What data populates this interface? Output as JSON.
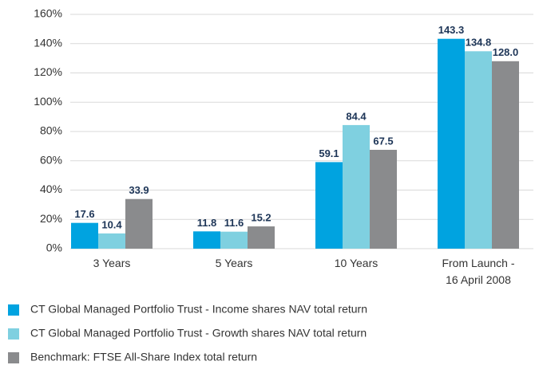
{
  "chart_data": {
    "type": "bar",
    "categories": [
      "3 Years",
      "5 Years",
      "10 Years",
      "From Launch -\n16 April 2008"
    ],
    "series": [
      {
        "name": "CT Global Managed Portfolio Trust - Income shares NAV total return",
        "color": "#00a3e0",
        "values": [
          17.6,
          11.8,
          59.1,
          143.3
        ],
        "value_labels": [
          "17.6",
          "11.8",
          "59.1",
          "143.3"
        ]
      },
      {
        "name": "CT Global Managed Portfolio Trust - Growth shares NAV total return",
        "color": "#7fd0e0",
        "values": [
          10.4,
          11.6,
          84.4,
          134.8
        ],
        "value_labels": [
          "10.4",
          "11.6",
          "84.4",
          "134.8"
        ]
      },
      {
        "name": "Benchmark: FTSE All-Share Index total return",
        "color": "#8a8b8d",
        "values": [
          33.9,
          15.2,
          67.5,
          128.0
        ],
        "value_labels": [
          "33.9",
          "15.2",
          "67.5",
          "128.0"
        ]
      }
    ],
    "ylim": [
      0,
      160
    ],
    "yticks": [
      {
        "value": 0,
        "label": "0%"
      },
      {
        "value": 20,
        "label": "20%"
      },
      {
        "value": 40,
        "label": "40%"
      },
      {
        "value": 60,
        "label": "60%"
      },
      {
        "value": 80,
        "label": "80%"
      },
      {
        "value": 100,
        "label": "100%"
      },
      {
        "value": 120,
        "label": "120%"
      },
      {
        "value": 140,
        "label": "140%"
      },
      {
        "value": 160,
        "label": "160%"
      }
    ],
    "grid": true,
    "legend": "bottom"
  }
}
